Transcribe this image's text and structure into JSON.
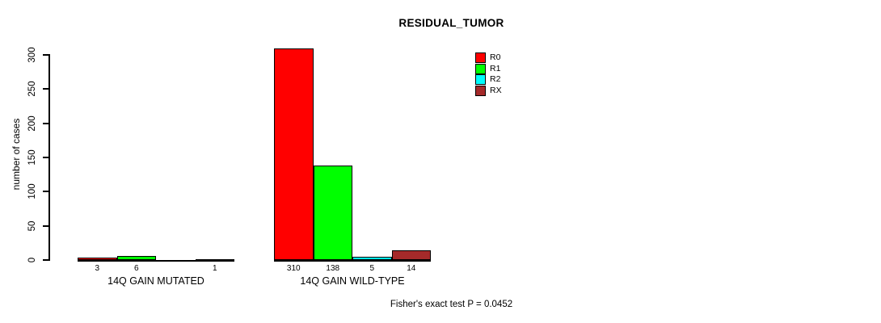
{
  "chart_data": {
    "type": "bar",
    "title": "RESIDUAL_TUMOR",
    "ylabel": "number of cases",
    "ylim": [
      0,
      300
    ],
    "yticks": [
      0,
      50,
      100,
      150,
      200,
      250,
      300
    ],
    "grid": false,
    "legend_position": "top-right",
    "categories": [
      "14Q GAIN MUTATED",
      "14Q GAIN WILD-TYPE"
    ],
    "series": [
      {
        "name": "R0",
        "color": "#FF0000",
        "values": [
          3,
          310
        ]
      },
      {
        "name": "R1",
        "color": "#00FF00",
        "values": [
          6,
          138
        ]
      },
      {
        "name": "R2",
        "color": "#00FFFF",
        "values": [
          0,
          5
        ]
      },
      {
        "name": "RX",
        "color": "#A52A2A",
        "values": [
          1,
          14
        ]
      }
    ],
    "bar_count_labels": [
      [
        "3",
        "6",
        "",
        "1"
      ],
      [
        "310",
        "138",
        "5",
        "14"
      ]
    ],
    "annotation": "Fisher's exact test P = 0.0452",
    "axis_color": "#000000"
  }
}
